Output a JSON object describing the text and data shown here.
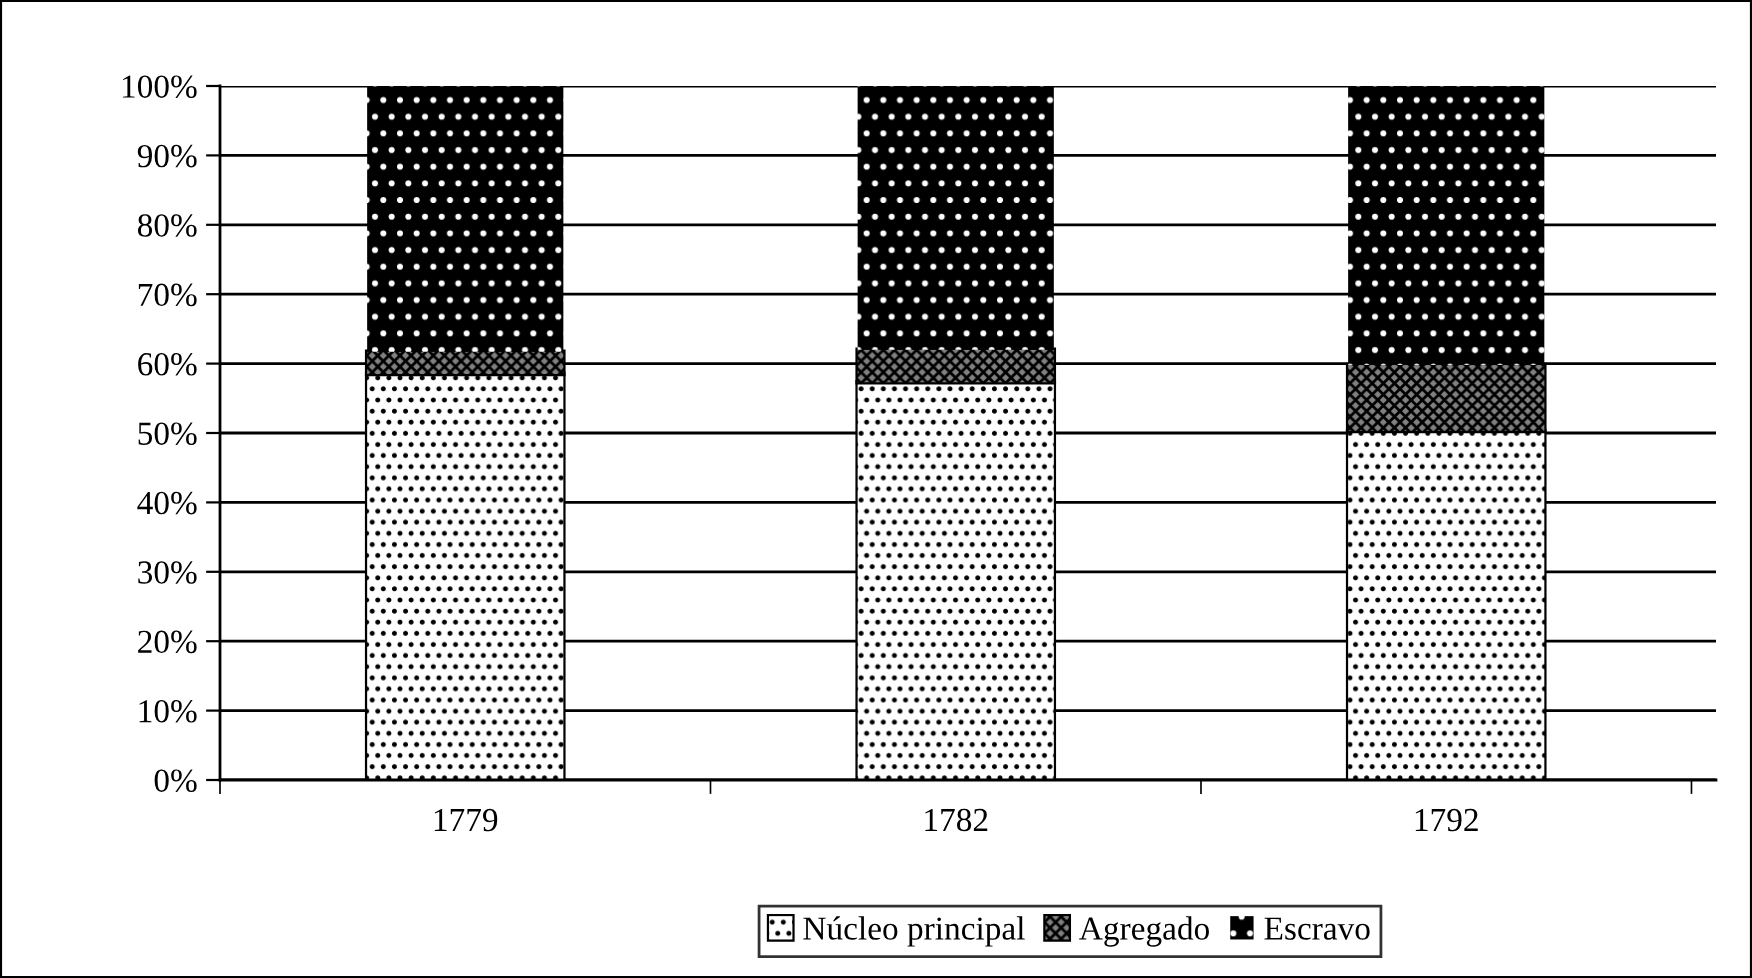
{
  "chart_data": {
    "type": "bar",
    "stacked": true,
    "categories": [
      "1779",
      "1782",
      "1792"
    ],
    "series": [
      {
        "name": "Núcleo principal",
        "color": "#ffffff",
        "values": [
          58.5,
          57.3,
          50.3
        ]
      },
      {
        "name": "Agregado",
        "color": "#808080",
        "values": [
          3.2,
          4.7,
          9.5
        ]
      },
      {
        "name": "Escravo",
        "color": "#000000",
        "values": [
          38.3,
          38.0,
          40.2
        ]
      }
    ],
    "ylim": [
      0,
      100
    ],
    "yticks": [
      {
        "value": 0,
        "label": "0%"
      },
      {
        "value": 10,
        "label": "10%"
      },
      {
        "value": 20,
        "label": "20%"
      },
      {
        "value": 30,
        "label": "30%"
      },
      {
        "value": 40,
        "label": "40%"
      },
      {
        "value": 50,
        "label": "50%"
      },
      {
        "value": 60,
        "label": "60%"
      },
      {
        "value": 70,
        "label": "70%"
      },
      {
        "value": 80,
        "label": "80%"
      },
      {
        "value": 90,
        "label": "90%"
      },
      {
        "value": 100,
        "label": "100%"
      }
    ],
    "grid": "y",
    "legend": "bottom"
  }
}
